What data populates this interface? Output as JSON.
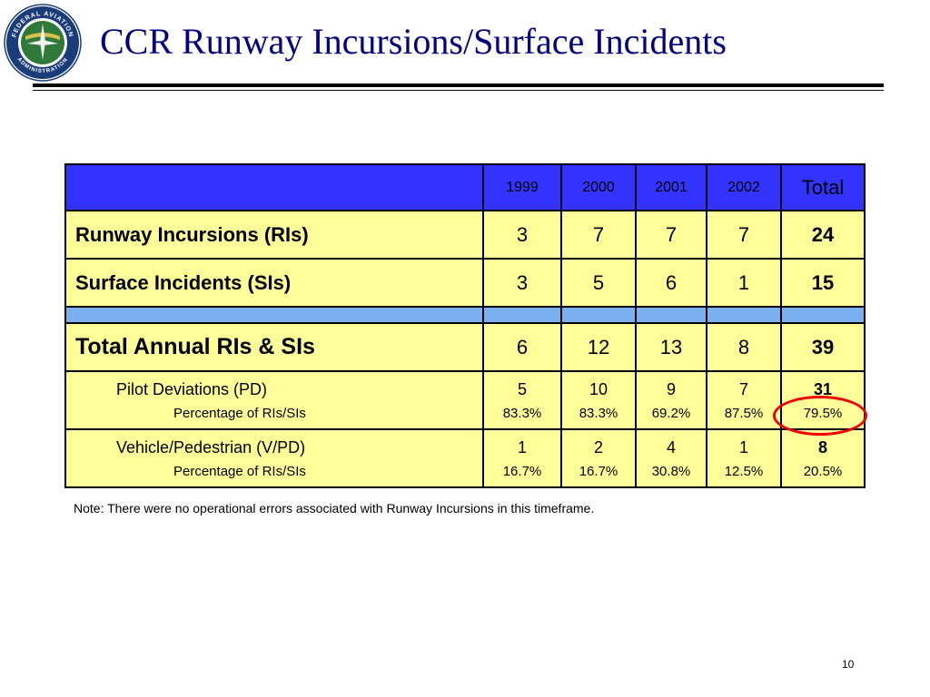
{
  "title": "CCR Runway Incursions/Surface Incidents",
  "logo": {
    "name": "faa-seal",
    "ring_text": "FEDERAL AVIATION ADMINISTRATION"
  },
  "colors": {
    "title": "#000080",
    "header_bg": "#3333ff",
    "row_bg": "#ffff99",
    "separator_bg": "#7ab0f0",
    "highlight_circle": "#ee0000"
  },
  "table": {
    "headers": [
      "1999",
      "2000",
      "2001",
      "2002",
      "Total"
    ],
    "runway_incursions": {
      "label": "Runway Incursions (RIs)",
      "values": [
        "3",
        "7",
        "7",
        "7"
      ],
      "total": "24"
    },
    "surface_incidents": {
      "label": "Surface Incidents (SIs)",
      "values": [
        "3",
        "5",
        "6",
        "1"
      ],
      "total": "15"
    },
    "total_annual": {
      "label": "Total Annual RIs & SIs",
      "values": [
        "6",
        "12",
        "13",
        "8"
      ],
      "total": "39"
    },
    "pilot_deviations": {
      "label": "Pilot Deviations (PD)",
      "pct_label": "Percentage of RIs/SIs",
      "values": [
        "5",
        "10",
        "9",
        "7"
      ],
      "total": "31",
      "pcts": [
        "83.3%",
        "83.3%",
        "69.2%",
        "87.5%"
      ],
      "total_pct": "79.5%"
    },
    "vehicle_pedestrian": {
      "label": "Vehicle/Pedestrian (V/PD)",
      "pct_label": "Percentage of RIs/SIs",
      "values": [
        "1",
        "2",
        "4",
        "1"
      ],
      "total": "8",
      "pcts": [
        "16.7%",
        "16.7%",
        "30.8%",
        "12.5%"
      ],
      "total_pct": "20.5%"
    }
  },
  "note": "Note: There were no operational errors associated with Runway Incursions in this timeframe.",
  "page_number": "10"
}
